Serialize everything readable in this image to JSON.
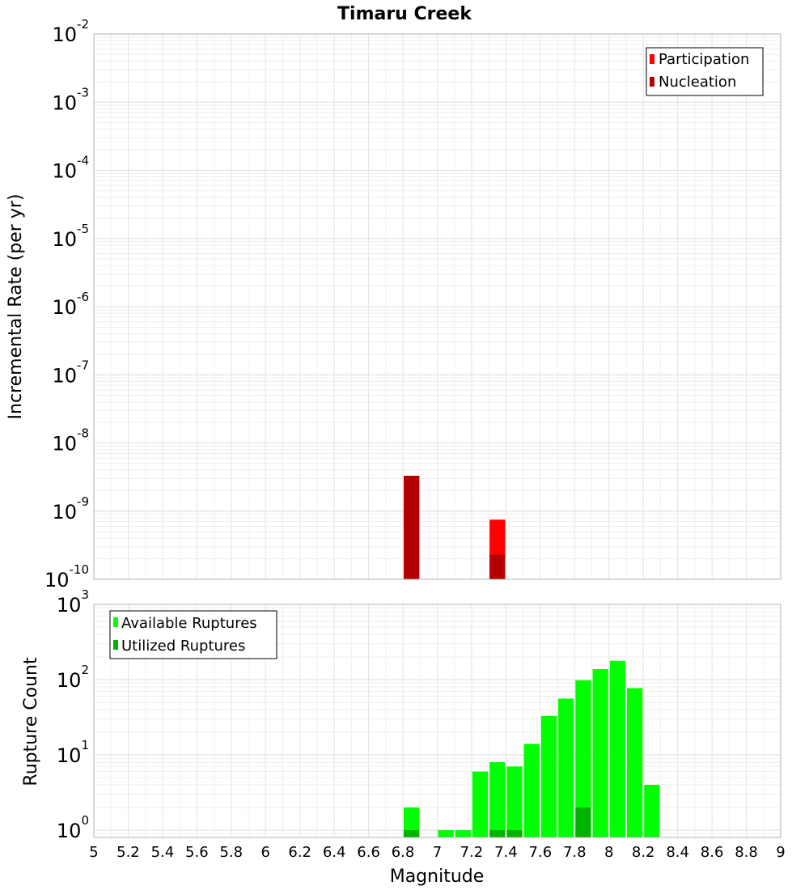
{
  "chart_data": [
    {
      "type": "bar",
      "title": "Timaru Creek",
      "xlabel": "",
      "ylabel": "Incremental Rate (per yr)",
      "yscale": "log",
      "ylim": [
        1e-10,
        0.01
      ],
      "xlim": [
        5,
        9
      ],
      "bin_width": 0.1,
      "grid": true,
      "legend_placement": "top-right",
      "ytick_labels": [
        {
          "base": "10",
          "exp": "-10",
          "value": 1e-10
        },
        {
          "base": "10",
          "exp": "-9",
          "value": 1e-09
        },
        {
          "base": "10",
          "exp": "-8",
          "value": 1e-08
        },
        {
          "base": "10",
          "exp": "-7",
          "value": 1e-07
        },
        {
          "base": "10",
          "exp": "-6",
          "value": 1e-06
        },
        {
          "base": "10",
          "exp": "-5",
          "value": 1e-05
        },
        {
          "base": "10",
          "exp": "-4",
          "value": 0.0001
        },
        {
          "base": "10",
          "exp": "-3",
          "value": 0.001
        },
        {
          "base": "10",
          "exp": "-2",
          "value": 0.01
        }
      ],
      "series": [
        {
          "name": "Participation",
          "color": "#ff0000",
          "points": [
            {
              "x": 6.85,
              "y": 3.3e-09
            },
            {
              "x": 7.35,
              "y": 7.5e-10
            }
          ]
        },
        {
          "name": "Nucleation",
          "color": "#b30000",
          "points": [
            {
              "x": 6.85,
              "y": 3.3e-09
            },
            {
              "x": 7.35,
              "y": 2.3e-10
            }
          ]
        }
      ]
    },
    {
      "type": "bar",
      "title": "",
      "xlabel": "Magnitude",
      "ylabel": "Rupture Count",
      "yscale": "log",
      "ylim": [
        0.8,
        1000
      ],
      "xlim": [
        5,
        9
      ],
      "bin_width": 0.1,
      "grid": true,
      "legend_placement": "top-left",
      "xtick_labels": [
        "5",
        "5.2",
        "5.4",
        "5.6",
        "5.8",
        "6",
        "6.2",
        "6.4",
        "6.6",
        "6.8",
        "7",
        "7.2",
        "7.4",
        "7.6",
        "7.8",
        "8",
        "8.2",
        "8.4",
        "8.6",
        "8.8",
        "9"
      ],
      "ytick_labels": [
        {
          "base": "10",
          "exp": "0",
          "value": 1
        },
        {
          "base": "10",
          "exp": "1",
          "value": 10
        },
        {
          "base": "10",
          "exp": "2",
          "value": 100
        },
        {
          "base": "10",
          "exp": "3",
          "value": 1000
        }
      ],
      "series": [
        {
          "name": "Available Ruptures",
          "color": "#00ff00",
          "points": [
            {
              "x": 6.85,
              "y": 2
            },
            {
              "x": 7.05,
              "y": 1
            },
            {
              "x": 7.15,
              "y": 1
            },
            {
              "x": 7.25,
              "y": 6
            },
            {
              "x": 7.35,
              "y": 8
            },
            {
              "x": 7.45,
              "y": 7
            },
            {
              "x": 7.55,
              "y": 14
            },
            {
              "x": 7.65,
              "y": 33
            },
            {
              "x": 7.75,
              "y": 56
            },
            {
              "x": 7.85,
              "y": 98
            },
            {
              "x": 7.95,
              "y": 138
            },
            {
              "x": 8.05,
              "y": 178
            },
            {
              "x": 8.15,
              "y": 77
            },
            {
              "x": 8.25,
              "y": 4
            }
          ]
        },
        {
          "name": "Utilized Ruptures",
          "color": "#00b300",
          "points": [
            {
              "x": 6.85,
              "y": 1
            },
            {
              "x": 7.35,
              "y": 1
            },
            {
              "x": 7.45,
              "y": 1
            },
            {
              "x": 7.85,
              "y": 2
            }
          ]
        }
      ]
    }
  ]
}
